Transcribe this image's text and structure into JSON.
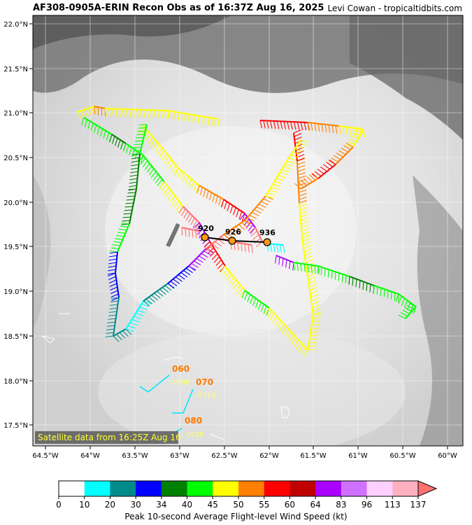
{
  "header": {
    "title": "AF308-0905A-ERIN Recon Obs as of 16:37Z Aug 16, 2025",
    "credit": "Levi Cowan - tropicaltidbits.com"
  },
  "map": {
    "lat_ticks": [
      "22.0°N",
      "21.5°N",
      "21.0°N",
      "20.5°N",
      "20.0°N",
      "19.5°N",
      "19.0°N",
      "18.5°N",
      "18.0°N",
      "17.5°N"
    ],
    "lon_ticks": [
      "64.5°W",
      "64°W",
      "63.5°W",
      "63°W",
      "62.5°W",
      "62°W",
      "61.5°W",
      "61°W",
      "60.5°W",
      "60°W"
    ],
    "satellite_note": "Satellite data from 16:25Z Aug 16",
    "pressure_labels": [
      "920",
      "926",
      "936"
    ],
    "obs_labels": [
      "060",
      "070",
      "080"
    ],
    "obs_labels_faint": [
      "0606",
      "0713",
      "0528"
    ]
  },
  "colorbar": {
    "ticks": [
      "0",
      "10",
      "20",
      "30",
      "34",
      "40",
      "45",
      "50",
      "55",
      "60",
      "64",
      "83",
      "96",
      "113",
      "137"
    ],
    "colors": [
      "#ffffff",
      "#00ffff",
      "#008b8b",
      "#0000ff",
      "#008000",
      "#00ff00",
      "#ffff00",
      "#ff8000",
      "#ff0000",
      "#c00000",
      "#aa00ff",
      "#d070ff",
      "#ffd0ff",
      "#ffb0c0",
      "#ff7070"
    ],
    "label": "Peak 10-second Average Flight-level Wind Speed (kt)"
  }
}
